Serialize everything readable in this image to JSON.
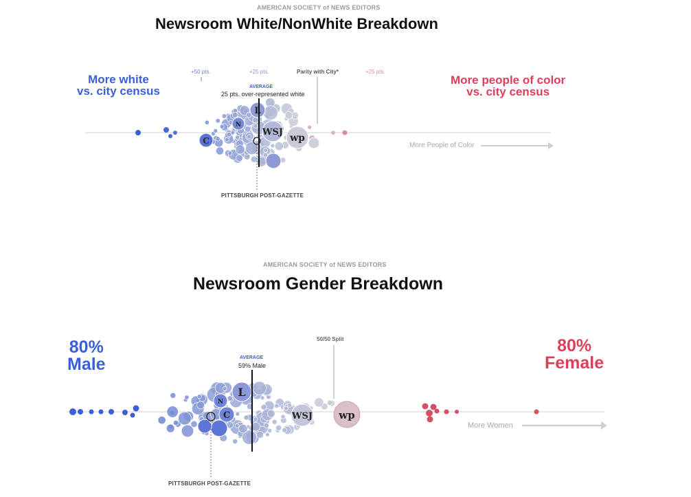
{
  "charts": [
    {
      "source": "AMERICAN SOCIETY of NEWS EDITORS",
      "title": "Newsroom White/NonWhite Breakdown",
      "left_label": [
        "More white",
        "vs. city census"
      ],
      "right_label": [
        "More people of color",
        "vs. city census"
      ],
      "ticks": [
        "+50 pts.",
        "+25 pts.",
        "Parity with City*",
        "+25 pts."
      ],
      "average_label": "AVERAGE",
      "average_text": "25 pts. over-represented white",
      "direction_text": "More People of Color",
      "highlight": "PITTSBURGH POST-GAZETTE",
      "logos": [
        "L",
        "N",
        "WSJ",
        "wp",
        "C"
      ]
    },
    {
      "source": "AMERICAN SOCIETY of NEWS EDITORS",
      "title": "Newsroom Gender Breakdown",
      "left_label": [
        "80%",
        "Male"
      ],
      "right_label": [
        "80%",
        "Female"
      ],
      "split_label": "50/50 Split",
      "average_label": "AVERAGE",
      "average_text": "59% Male",
      "direction_text": "More Women",
      "highlight": "PITTSBURGH POST-GAZETTE",
      "logos": [
        "L",
        "N",
        "C",
        "WSJ",
        "wp"
      ]
    }
  ],
  "colors": {
    "blue": "#3b5fd6",
    "red": "#dd3f5a",
    "grey": "#c8c8d0"
  },
  "chart_data": [
    {
      "type": "scatter",
      "title": "Newsroom White/NonWhite Breakdown",
      "xlabel": "",
      "ylabel": "",
      "x_ticks": [
        "+50 pts.",
        "+25 pts.",
        "Parity with City*",
        "+25 pts."
      ],
      "average": 25,
      "note": "beeswarm of newsrooms; x = points over-represented white vs. city census"
    },
    {
      "type": "scatter",
      "title": "Newsroom Gender Breakdown",
      "xlabel": "",
      "ylabel": "",
      "x_ticks": [
        "80% Male",
        "50/50 Split",
        "80% Female"
      ],
      "average": 59,
      "note": "beeswarm of newsrooms; x = percent male staff"
    }
  ]
}
